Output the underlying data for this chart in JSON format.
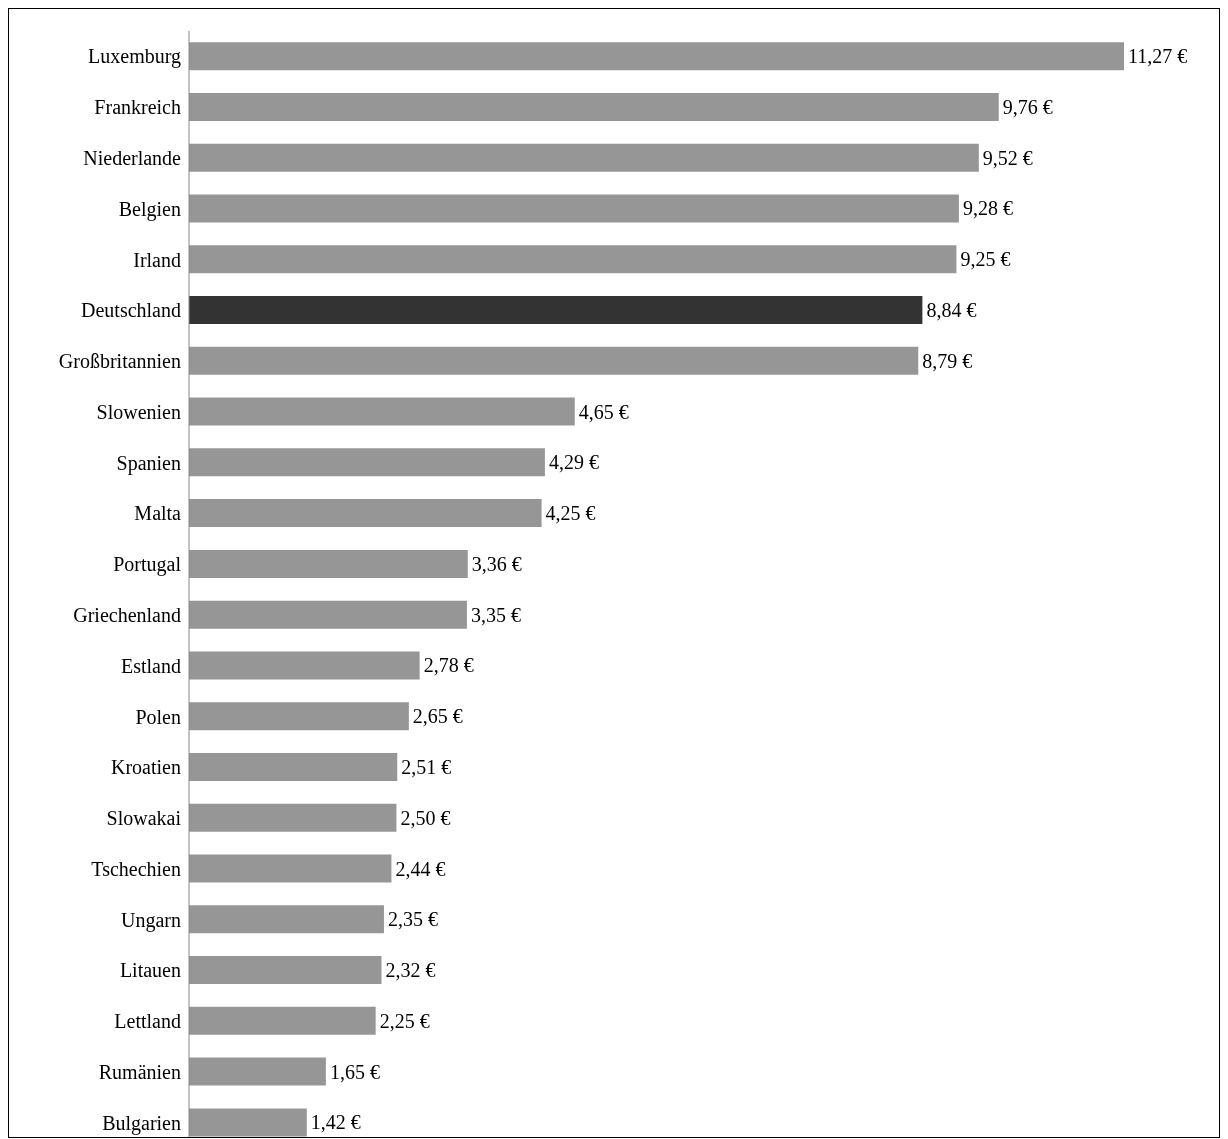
{
  "chart_data": {
    "type": "bar",
    "orientation": "horizontal",
    "categories": [
      "Luxemburg",
      "Frankreich",
      "Niederlande",
      "Belgien",
      "Irland",
      "Deutschland",
      "Großbritannien",
      "Slowenien",
      "Spanien",
      "Malta",
      "Portugal",
      "Griechenland",
      "Estland",
      "Polen",
      "Kroatien",
      "Slowakai",
      "Tschechien",
      "Ungarn",
      "Litauen",
      "Lettland",
      "Rumänien",
      "Bulgarien"
    ],
    "values": [
      11.27,
      9.76,
      9.52,
      9.28,
      9.25,
      8.84,
      8.79,
      4.65,
      4.29,
      4.25,
      3.36,
      3.35,
      2.78,
      2.65,
      2.51,
      2.5,
      2.44,
      2.35,
      2.32,
      2.25,
      1.65,
      1.42
    ],
    "value_labels": [
      "11,27 €",
      "9,76 €",
      "9,52 €",
      "9,28 €",
      "9,25 €",
      "8,84 €",
      "8,79 €",
      "4,65 €",
      "4,29 €",
      "4,25 €",
      "3,36 €",
      "3,35 €",
      "2,78 €",
      "2,65 €",
      "2,51 €",
      "2,50 €",
      "2,44 €",
      "2,35 €",
      "2,32 €",
      "2,25 €",
      "1,65 €",
      "1,42 €"
    ],
    "colors": [
      "#969696",
      "#969696",
      "#969696",
      "#969696",
      "#969696",
      "#333333",
      "#969696",
      "#969696",
      "#969696",
      "#969696",
      "#969696",
      "#969696",
      "#969696",
      "#969696",
      "#969696",
      "#969696",
      "#969696",
      "#969696",
      "#969696",
      "#969696",
      "#969696",
      "#969696"
    ],
    "tick_labels": "y"
  }
}
